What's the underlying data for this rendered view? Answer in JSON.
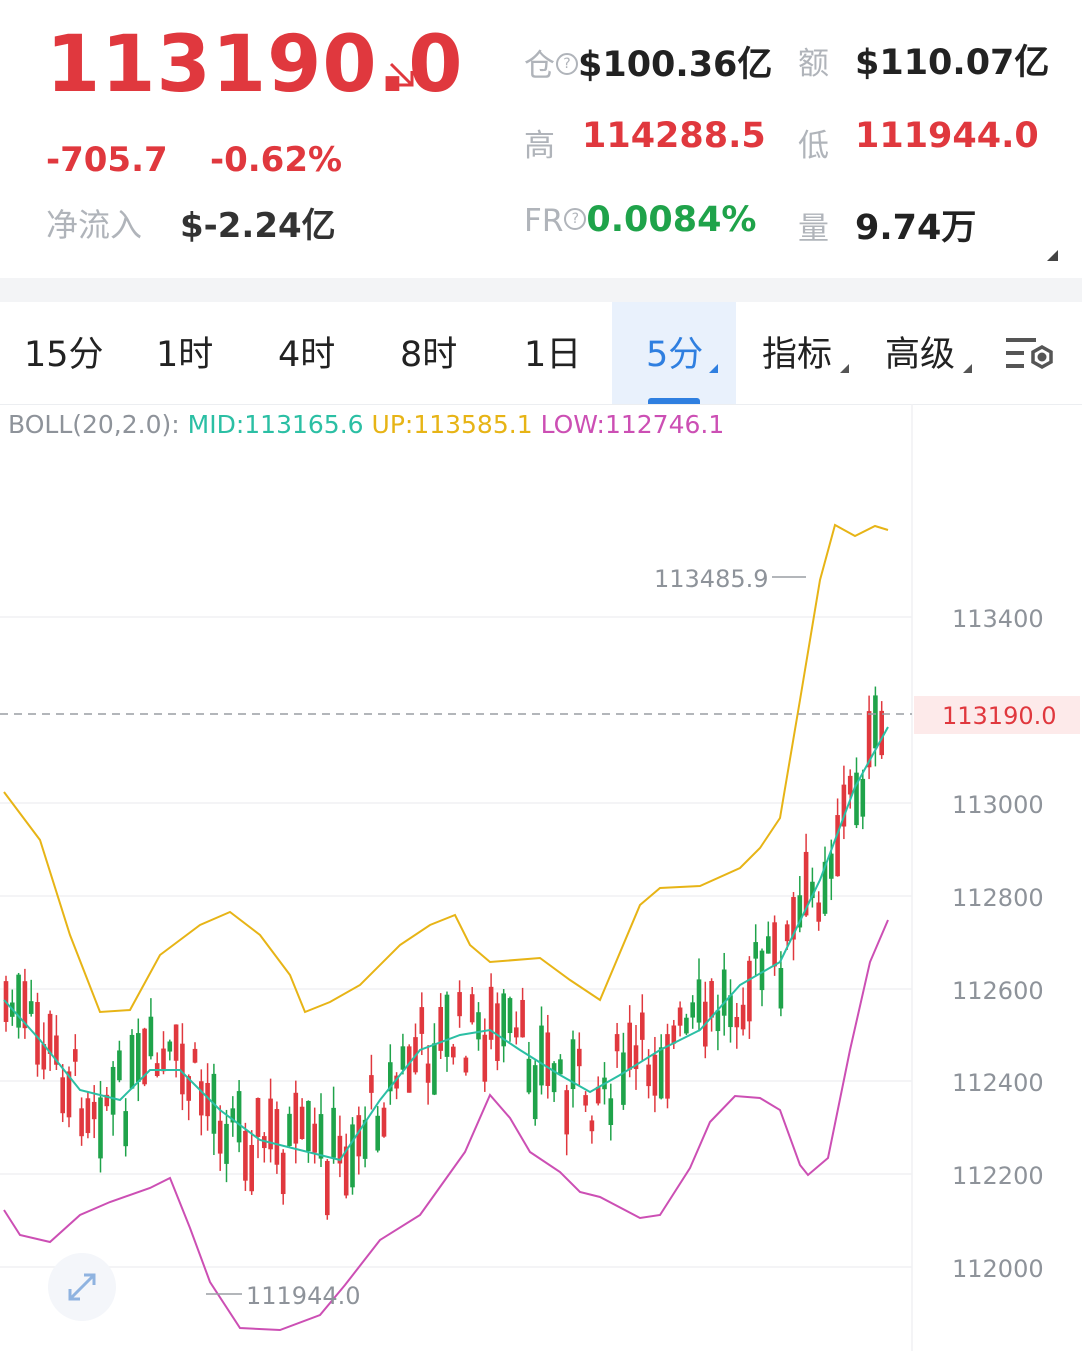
{
  "header": {
    "price": "113190.0",
    "change": "-705.7",
    "change_pct": "-0.62%",
    "net_inflow_label": "净流入",
    "net_inflow_value": "$-2.24亿",
    "open_interest_label": "仓",
    "open_interest_value": "$100.36亿",
    "turnover_label": "额",
    "turnover_value": "$110.07亿",
    "high_label": "高",
    "high_value": "114288.5",
    "low_label": "低",
    "low_value": "111944.0",
    "funding_rate_label": "FR",
    "funding_rate_value": "0.0084%",
    "volume_label": "量",
    "volume_value": "9.74万",
    "help_icon_glyph": "?"
  },
  "tabs": [
    {
      "label": "15分"
    },
    {
      "label": "1时"
    },
    {
      "label": "4时"
    },
    {
      "label": "8时"
    },
    {
      "label": "1日"
    },
    {
      "label": "5分",
      "active": true
    },
    {
      "label": "指标"
    },
    {
      "label": "高级"
    }
  ],
  "indicator": {
    "name": "BOLL(20,2.0):",
    "mid": "MID:113165.6",
    "up": "UP:113585.1",
    "low": "LOW:112746.1"
  },
  "chart": {
    "y_ticks": [
      "113400",
      "113000",
      "112800",
      "112600",
      "112400",
      "112200",
      "112000"
    ],
    "current_price_label": "113190.0",
    "max_marker": "113485.9",
    "min_marker": "111944.0"
  },
  "colors": {
    "up": "#e0383e",
    "down": "#1fa34a",
    "accent": "#2f7fe0",
    "boll_mid": "#2bbfa4",
    "boll_up": "#e7b416",
    "boll_low": "#cc4fb4"
  },
  "icons": {
    "price_direction": "arrow-down-right-icon",
    "settings": "chart-settings-icon",
    "expand": "expand-icon"
  }
}
